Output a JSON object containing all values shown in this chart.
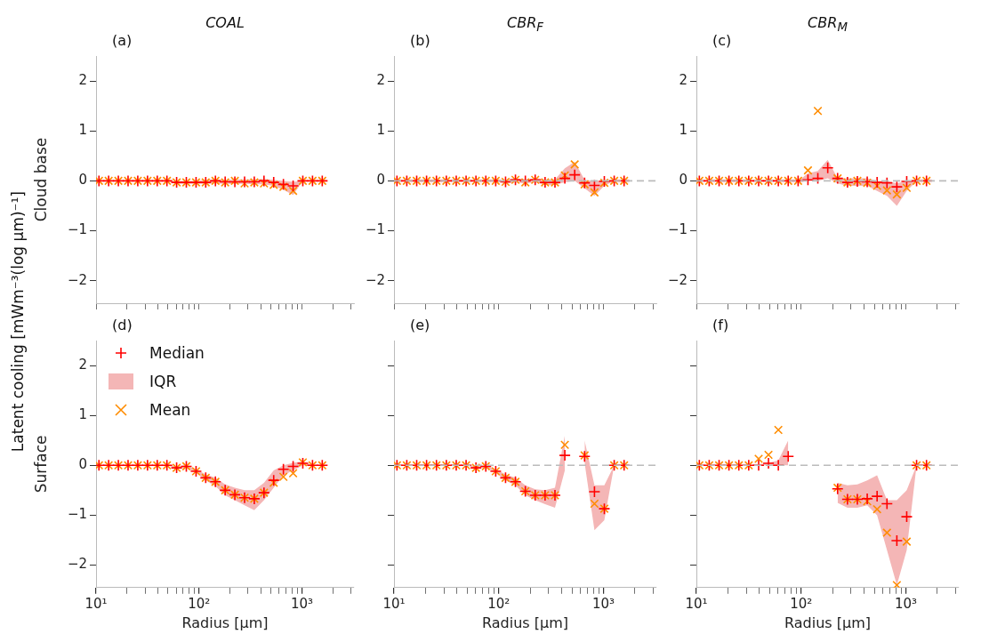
{
  "chart_data": [
    {
      "type": "scatter",
      "title": "COAL",
      "ylabel": "Cloud base",
      "annotations": [
        "(a)",
        "Latent cooling [mWm⁻³(log μm)⁻¹]"
      ],
      "log": "x",
      "xlim": [
        10,
        3200
      ],
      "ylim": [
        -2.45,
        2.5
      ],
      "tick_labels": "y",
      "xticks": [
        {
          "value": 10,
          "label": null
        },
        {
          "value": 20,
          "label": null
        },
        {
          "value": 30,
          "label": null
        },
        {
          "value": 40,
          "label": null
        },
        {
          "value": 50,
          "label": null
        },
        {
          "value": 60,
          "label": null
        },
        {
          "value": 70,
          "label": null
        },
        {
          "value": 80,
          "label": null
        },
        {
          "value": 90,
          "label": null
        },
        {
          "value": 100,
          "label": null
        },
        {
          "value": 200,
          "label": null
        },
        {
          "value": 300,
          "label": null
        },
        {
          "value": 400,
          "label": null
        },
        {
          "value": 500,
          "label": null
        },
        {
          "value": 600,
          "label": null
        },
        {
          "value": 700,
          "label": null
        },
        {
          "value": 800,
          "label": null
        },
        {
          "value": 900,
          "label": null
        },
        {
          "value": 1000,
          "label": null
        },
        {
          "value": 2000,
          "label": null
        },
        {
          "value": 3000,
          "label": null
        }
      ],
      "yticks": [
        {
          "value": -2,
          "label": "−2"
        },
        {
          "value": -1,
          "label": "−1"
        },
        0,
        1,
        2
      ],
      "x": [
        10.67,
        13.25,
        16.47,
        20.46,
        25.42,
        31.6,
        39.3,
        48.8,
        60.6,
        75.3,
        93.6,
        116.2,
        144.4,
        179.5,
        222.9,
        277,
        344.3,
        427.7,
        531.4,
        660.3,
        820.4,
        1019,
        1266,
        1574
      ],
      "series": [
        {
          "type": "scatter",
          "marker": "plus",
          "color": "#ff0000",
          "values": [
            0,
            0,
            0,
            0,
            0,
            0,
            0,
            0,
            -0.03,
            -0.03,
            -0.03,
            -0.03,
            0,
            -0.02,
            -0.02,
            -0.02,
            -0.02,
            0,
            -0.03,
            -0.07,
            -0.1,
            0,
            0,
            0
          ]
        },
        {
          "type": "area",
          "color": "#f4b6b6",
          "values": [
            null,
            null,
            null,
            null,
            null,
            null,
            null,
            null,
            null,
            null,
            null,
            null,
            null,
            null,
            null,
            null,
            null,
            null,
            null,
            null,
            null,
            null,
            null,
            null
          ],
          "lower": [
            0,
            0,
            0,
            0,
            0,
            0,
            0,
            0,
            -0.06,
            -0.06,
            -0.06,
            -0.06,
            -0.05,
            -0.06,
            -0.06,
            -0.06,
            -0.07,
            -0.07,
            -0.1,
            -0.18,
            -0.28,
            0,
            0,
            0
          ],
          "upper": [
            0,
            0,
            0,
            0,
            0,
            0,
            0,
            0,
            0,
            0,
            0,
            0.02,
            0.03,
            0.02,
            0.03,
            0.03,
            0.03,
            0.04,
            0.02,
            0,
            -0.02,
            0,
            0,
            0
          ]
        },
        {
          "type": "scatter",
          "marker": "cross",
          "color": "#ff8c00",
          "values": [
            0,
            0,
            0,
            0,
            0,
            0,
            0,
            0,
            -0.03,
            -0.03,
            -0.03,
            -0.03,
            0,
            -0.03,
            0,
            -0.05,
            -0.03,
            -0.05,
            -0.08,
            -0.12,
            -0.2,
            0,
            0,
            0
          ]
        }
      ]
    },
    {
      "type": "scatter",
      "title": "CBR$_{F}$",
      "annotations": [
        "(b)"
      ],
      "log": "x",
      "xlim": [
        10,
        3200
      ],
      "ylim": [
        -2.45,
        2.5
      ],
      "tick_labels": "y",
      "xticks": [
        {
          "value": 10,
          "label": null
        },
        {
          "value": 20,
          "label": null
        },
        {
          "value": 30,
          "label": null
        },
        {
          "value": 40,
          "label": null
        },
        {
          "value": 50,
          "label": null
        },
        {
          "value": 60,
          "label": null
        },
        {
          "value": 70,
          "label": null
        },
        {
          "value": 80,
          "label": null
        },
        {
          "value": 90,
          "label": null
        },
        {
          "value": 100,
          "label": null
        },
        {
          "value": 200,
          "label": null
        },
        {
          "value": 300,
          "label": null
        },
        {
          "value": 400,
          "label": null
        },
        {
          "value": 500,
          "label": null
        },
        {
          "value": 600,
          "label": null
        },
        {
          "value": 700,
          "label": null
        },
        {
          "value": 800,
          "label": null
        },
        {
          "value": 900,
          "label": null
        },
        {
          "value": 1000,
          "label": null
        },
        {
          "value": 2000,
          "label": null
        },
        {
          "value": 3000,
          "label": null
        }
      ],
      "yticks": [
        {
          "value": -2,
          "label": "−2"
        },
        {
          "value": -1,
          "label": "−1"
        },
        0,
        1,
        2
      ],
      "ref_lines": [
        {
          "axis": "y",
          "value": 0,
          "color": "#bbbbbb",
          "line_style": "dashed"
        }
      ],
      "x": [
        10.67,
        13.25,
        16.47,
        20.46,
        25.42,
        31.6,
        39.3,
        48.8,
        60.6,
        75.3,
        93.6,
        116.2,
        144.4,
        179.5,
        222.9,
        277,
        344.3,
        427.7,
        531.4,
        660.3,
        820.4,
        1019,
        1266,
        1574
      ],
      "series": [
        {
          "type": "scatter",
          "marker": "plus",
          "color": "#ff0000",
          "values": [
            0,
            0,
            0,
            0,
            0,
            0,
            0,
            0,
            0,
            0,
            0,
            -0.02,
            0.02,
            0,
            0.02,
            -0.03,
            -0.03,
            0.05,
            0.12,
            -0.04,
            -0.09,
            -0.01,
            0,
            0
          ]
        },
        {
          "type": "area",
          "color": "#f4b6b6",
          "values": [
            null,
            null,
            null,
            null,
            null,
            null,
            null,
            null,
            null,
            null,
            null,
            null,
            null,
            null,
            null,
            null,
            null,
            null,
            null,
            null,
            null,
            null,
            null,
            null
          ],
          "lower": [
            0,
            0,
            0,
            0,
            0,
            0,
            0,
            0,
            0,
            0,
            0,
            -0.05,
            -0.03,
            -0.05,
            -0.03,
            -0.08,
            -0.08,
            -0.03,
            0,
            -0.15,
            -0.3,
            -0.1,
            0,
            0
          ],
          "upper": [
            0,
            0,
            0,
            0,
            0,
            0,
            0,
            0,
            0,
            0,
            0,
            0.02,
            0.05,
            0.03,
            0.05,
            0.03,
            0.03,
            0.25,
            0.38,
            0.02,
            0,
            0.02,
            0,
            0
          ]
        },
        {
          "type": "scatter",
          "marker": "cross",
          "color": "#ff8c00",
          "values": [
            0,
            0,
            0,
            0,
            0,
            0,
            0,
            0,
            0,
            0,
            0,
            -0.02,
            0.02,
            -0.03,
            0.02,
            -0.03,
            -0.03,
            0.11,
            0.33,
            -0.07,
            -0.23,
            -0.04,
            0,
            0
          ]
        }
      ]
    },
    {
      "type": "scatter",
      "title": "CBR$_{M}$",
      "annotations": [
        "(c)"
      ],
      "log": "x",
      "xlim": [
        10,
        3200
      ],
      "ylim": [
        -2.45,
        2.5
      ],
      "tick_labels": "y",
      "xticks": [
        {
          "value": 10,
          "label": null
        },
        {
          "value": 20,
          "label": null
        },
        {
          "value": 30,
          "label": null
        },
        {
          "value": 40,
          "label": null
        },
        {
          "value": 50,
          "label": null
        },
        {
          "value": 60,
          "label": null
        },
        {
          "value": 70,
          "label": null
        },
        {
          "value": 80,
          "label": null
        },
        {
          "value": 90,
          "label": null
        },
        {
          "value": 100,
          "label": null
        },
        {
          "value": 200,
          "label": null
        },
        {
          "value": 300,
          "label": null
        },
        {
          "value": 400,
          "label": null
        },
        {
          "value": 500,
          "label": null
        },
        {
          "value": 600,
          "label": null
        },
        {
          "value": 700,
          "label": null
        },
        {
          "value": 800,
          "label": null
        },
        {
          "value": 900,
          "label": null
        },
        {
          "value": 1000,
          "label": null
        },
        {
          "value": 2000,
          "label": null
        },
        {
          "value": 3000,
          "label": null
        }
      ],
      "yticks": [
        {
          "value": -2,
          "label": "−2"
        },
        {
          "value": -1,
          "label": "−1"
        },
        0,
        1,
        2
      ],
      "ref_lines": [
        {
          "axis": "y",
          "value": 0,
          "color": "#bbbbbb",
          "line_style": "dashed"
        }
      ],
      "x": [
        10.67,
        13.25,
        16.47,
        20.46,
        25.42,
        31.6,
        39.3,
        48.8,
        60.6,
        75.3,
        93.6,
        116.2,
        144.4,
        179.5,
        222.9,
        277,
        344.3,
        427.7,
        531.4,
        660.3,
        820.4,
        1019,
        1266,
        1574
      ],
      "series": [
        {
          "type": "scatter",
          "marker": "plus",
          "color": "#ff0000",
          "values": [
            0,
            0,
            0,
            0,
            0,
            0,
            0,
            0,
            0,
            0,
            0,
            0.02,
            0.05,
            0.26,
            0.05,
            -0.03,
            -0.01,
            -0.02,
            -0.03,
            -0.04,
            -0.12,
            -0.01,
            0,
            0
          ]
        },
        {
          "type": "area",
          "color": "#f4b6b6",
          "values": [
            null,
            null,
            null,
            null,
            null,
            null,
            null,
            null,
            null,
            null,
            null,
            null,
            null,
            null,
            null,
            null,
            null,
            null,
            null,
            null,
            null,
            null,
            null,
            null
          ],
          "lower": [
            0,
            0,
            0,
            0,
            0,
            0,
            0,
            0,
            0,
            0,
            0,
            0,
            0,
            0.05,
            -0.05,
            -0.1,
            -0.1,
            -0.1,
            -0.2,
            -0.3,
            -0.5,
            -0.2,
            0,
            0
          ],
          "upper": [
            0,
            0,
            0,
            0,
            0,
            0,
            0,
            0,
            0,
            0,
            0,
            0.15,
            0.2,
            0.42,
            0.05,
            0.05,
            0.05,
            0.05,
            0,
            0,
            -0.05,
            0,
            0,
            0
          ]
        },
        {
          "type": "scatter",
          "marker": "cross",
          "color": "#ff8c00",
          "values": [
            0,
            0,
            0,
            0,
            0,
            0,
            0,
            0,
            0,
            0,
            0,
            0.21,
            1.4,
            null,
            0.05,
            -0.03,
            0,
            -0.04,
            -0.1,
            -0.19,
            -0.27,
            -0.14,
            0,
            0
          ]
        }
      ]
    },
    {
      "type": "scatter",
      "xlabel": "Radius [μm]",
      "ylabel": "Surface",
      "annotations": [
        "(d)"
      ],
      "log": "x",
      "xlim": [
        10,
        3200
      ],
      "ylim": [
        -2.45,
        2.5
      ],
      "legend": "top left",
      "xticks": [
        {
          "value": 10,
          "label": "10¹"
        },
        {
          "value": 20,
          "label": null
        },
        {
          "value": 30,
          "label": null
        },
        {
          "value": 40,
          "label": null
        },
        {
          "value": 50,
          "label": null
        },
        {
          "value": 60,
          "label": null
        },
        {
          "value": 70,
          "label": null
        },
        {
          "value": 80,
          "label": null
        },
        {
          "value": 90,
          "label": null
        },
        {
          "value": 100,
          "label": "10²"
        },
        {
          "value": 200,
          "label": null
        },
        {
          "value": 300,
          "label": null
        },
        {
          "value": 400,
          "label": null
        },
        {
          "value": 500,
          "label": null
        },
        {
          "value": 600,
          "label": null
        },
        {
          "value": 700,
          "label": null
        },
        {
          "value": 800,
          "label": null
        },
        {
          "value": 900,
          "label": null
        },
        {
          "value": 1000,
          "label": "10³"
        },
        {
          "value": 2000,
          "label": null
        },
        {
          "value": 3000,
          "label": null
        }
      ],
      "yticks": [
        {
          "value": -2,
          "label": "−2"
        },
        {
          "value": -1,
          "label": "−1"
        },
        0,
        1,
        2
      ],
      "x": [
        10.67,
        13.25,
        16.47,
        20.46,
        25.42,
        31.6,
        39.3,
        48.8,
        60.6,
        75.3,
        93.6,
        116.2,
        144.4,
        179.5,
        222.9,
        277,
        344.3,
        427.7,
        531.4,
        660.3,
        820.4,
        1019,
        1266,
        1574
      ],
      "series": [
        {
          "name": "Median",
          "type": "scatter",
          "marker": "plus",
          "color": "#ff0000",
          "values": [
            0,
            0,
            0,
            0,
            0,
            0,
            0,
            0,
            -0.05,
            -0.02,
            -0.12,
            -0.25,
            -0.33,
            -0.5,
            -0.59,
            -0.65,
            -0.67,
            -0.55,
            -0.3,
            -0.08,
            -0.02,
            0.04,
            0,
            0
          ]
        },
        {
          "name": "IQR",
          "type": "area",
          "color": "#f4b6b6",
          "values": [
            null,
            null,
            null,
            null,
            null,
            null,
            null,
            null,
            null,
            null,
            null,
            null,
            null,
            null,
            null,
            null,
            null,
            null,
            null,
            null,
            null,
            null,
            null,
            null
          ],
          "lower": [
            0,
            0,
            0,
            0,
            0,
            0,
            0,
            0,
            -0.06,
            -0.05,
            -0.15,
            -0.3,
            -0.42,
            -0.6,
            -0.7,
            -0.8,
            -0.9,
            -0.7,
            -0.45,
            -0.2,
            -0.1,
            0,
            0,
            0
          ],
          "upper": [
            0,
            0,
            0,
            0,
            0,
            0,
            0,
            0,
            -0.02,
            0,
            -0.08,
            -0.18,
            -0.25,
            -0.38,
            -0.45,
            -0.5,
            -0.5,
            -0.35,
            -0.1,
            0,
            0.05,
            0.08,
            0,
            0
          ]
        },
        {
          "name": "Mean",
          "type": "scatter",
          "marker": "cross",
          "color": "#ff8c00",
          "values": [
            0,
            0,
            0,
            0,
            0,
            0,
            0,
            0,
            -0.05,
            -0.02,
            -0.12,
            -0.25,
            -0.33,
            -0.5,
            -0.59,
            -0.65,
            -0.67,
            -0.55,
            -0.35,
            -0.23,
            -0.16,
            0.06,
            0,
            0
          ]
        }
      ]
    },
    {
      "type": "scatter",
      "xlabel": "Radius [μm]",
      "annotations": [
        "(e)"
      ],
      "log": "x",
      "xlim": [
        10,
        3200
      ],
      "ylim": [
        -2.45,
        2.5
      ],
      "tick_labels": "x",
      "xticks": [
        {
          "value": 10,
          "label": "10¹"
        },
        {
          "value": 20,
          "label": null
        },
        {
          "value": 30,
          "label": null
        },
        {
          "value": 40,
          "label": null
        },
        {
          "value": 50,
          "label": null
        },
        {
          "value": 60,
          "label": null
        },
        {
          "value": 70,
          "label": null
        },
        {
          "value": 80,
          "label": null
        },
        {
          "value": 90,
          "label": null
        },
        {
          "value": 100,
          "label": "10²"
        },
        {
          "value": 200,
          "label": null
        },
        {
          "value": 300,
          "label": null
        },
        {
          "value": 400,
          "label": null
        },
        {
          "value": 500,
          "label": null
        },
        {
          "value": 600,
          "label": null
        },
        {
          "value": 700,
          "label": null
        },
        {
          "value": 800,
          "label": null
        },
        {
          "value": 900,
          "label": null
        },
        {
          "value": 1000,
          "label": "10³"
        },
        {
          "value": 2000,
          "label": null
        },
        {
          "value": 3000,
          "label": null
        }
      ],
      "yticks": [
        {
          "value": -2,
          "label": null
        },
        {
          "value": -1,
          "label": null
        },
        {
          "value": 0,
          "label": null
        },
        {
          "value": 1,
          "label": null
        },
        {
          "value": 2,
          "label": null
        }
      ],
      "ref_lines": [
        {
          "axis": "y",
          "value": 0,
          "color": "#bbbbbb",
          "line_style": "dashed"
        }
      ],
      "x": [
        10.67,
        13.25,
        16.47,
        20.46,
        25.42,
        31.6,
        39.3,
        48.8,
        60.6,
        75.3,
        93.6,
        116.2,
        144.4,
        179.5,
        222.9,
        277,
        344.3,
        427.7,
        531.4,
        660.3,
        820.4,
        1019,
        1266,
        1574
      ],
      "series": [
        {
          "type": "scatter",
          "marker": "plus",
          "color": "#ff0000",
          "values": [
            0,
            0,
            0,
            0,
            0,
            0,
            0,
            0,
            -0.05,
            -0.02,
            -0.12,
            -0.25,
            -0.33,
            -0.52,
            -0.6,
            -0.6,
            -0.6,
            0.2,
            null,
            0.18,
            -0.53,
            -0.87,
            0,
            0
          ]
        },
        {
          "type": "area",
          "color": "#f4b6b6",
          "values": [
            null,
            null,
            null,
            null,
            null,
            null,
            null,
            null,
            null,
            null,
            null,
            null,
            null,
            null,
            null,
            null,
            null,
            null,
            null,
            null,
            null,
            null,
            null,
            null
          ],
          "lower": [
            0,
            0,
            0,
            0,
            0,
            0,
            0,
            0,
            -0.06,
            -0.05,
            -0.15,
            -0.3,
            -0.4,
            -0.6,
            -0.7,
            -0.78,
            -0.85,
            -0.1,
            null,
            0.05,
            -1.3,
            -1.1,
            0,
            0
          ],
          "upper": [
            0,
            0,
            0,
            0,
            0,
            0,
            0,
            0,
            -0.02,
            0,
            -0.08,
            -0.18,
            -0.25,
            -0.4,
            -0.48,
            -0.5,
            -0.45,
            0.6,
            null,
            0.5,
            -0.4,
            -0.4,
            0,
            0
          ]
        },
        {
          "type": "scatter",
          "marker": "cross",
          "color": "#ff8c00",
          "values": [
            0,
            0,
            0,
            0,
            0,
            0,
            0,
            0,
            -0.05,
            -0.02,
            -0.12,
            -0.25,
            -0.33,
            -0.52,
            -0.6,
            -0.6,
            -0.6,
            0.41,
            null,
            0.2,
            -0.77,
            -0.87,
            0,
            0
          ]
        }
      ]
    },
    {
      "type": "scatter",
      "xlabel": "Radius [μm]",
      "annotations": [
        "(f)"
      ],
      "log": "x",
      "xlim": [
        10,
        3200
      ],
      "ylim": [
        -2.45,
        2.5
      ],
      "tick_labels": "x",
      "xticks": [
        {
          "value": 10,
          "label": "10¹"
        },
        {
          "value": 20,
          "label": null
        },
        {
          "value": 30,
          "label": null
        },
        {
          "value": 40,
          "label": null
        },
        {
          "value": 50,
          "label": null
        },
        {
          "value": 60,
          "label": null
        },
        {
          "value": 70,
          "label": null
        },
        {
          "value": 80,
          "label": null
        },
        {
          "value": 90,
          "label": null
        },
        {
          "value": 100,
          "label": "10²"
        },
        {
          "value": 200,
          "label": null
        },
        {
          "value": 300,
          "label": null
        },
        {
          "value": 400,
          "label": null
        },
        {
          "value": 500,
          "label": null
        },
        {
          "value": 600,
          "label": null
        },
        {
          "value": 700,
          "label": null
        },
        {
          "value": 800,
          "label": null
        },
        {
          "value": 900,
          "label": null
        },
        {
          "value": 1000,
          "label": "10³"
        },
        {
          "value": 2000,
          "label": null
        },
        {
          "value": 3000,
          "label": null
        }
      ],
      "yticks": [
        {
          "value": -2,
          "label": null
        },
        {
          "value": -1,
          "label": null
        },
        {
          "value": 0,
          "label": null
        },
        {
          "value": 1,
          "label": null
        },
        {
          "value": 2,
          "label": null
        }
      ],
      "ref_lines": [
        {
          "axis": "y",
          "value": 0,
          "color": "#bbbbbb",
          "line_style": "dashed"
        }
      ],
      "x": [
        10.67,
        13.25,
        16.47,
        20.46,
        25.42,
        31.6,
        39.3,
        48.8,
        60.6,
        75.3,
        93.6,
        116.2,
        144.4,
        179.5,
        222.9,
        277,
        344.3,
        427.7,
        531.4,
        660.3,
        820.4,
        1019,
        1266,
        1574
      ],
      "series": [
        {
          "type": "scatter",
          "marker": "plus",
          "color": "#ff0000",
          "values": [
            0,
            0,
            0,
            0,
            0,
            0,
            0,
            0.04,
            0,
            0.18,
            null,
            null,
            null,
            null,
            -0.47,
            -0.68,
            -0.68,
            -0.67,
            -0.62,
            -0.77,
            -1.51,
            -1.03,
            0,
            0
          ]
        },
        {
          "type": "area",
          "color": "#f4b6b6",
          "values": [
            null,
            null,
            null,
            null,
            null,
            null,
            null,
            null,
            null,
            null,
            null,
            null,
            null,
            null,
            null,
            null,
            null,
            null,
            null,
            null,
            null,
            null,
            null,
            null
          ],
          "lower": [
            0,
            0,
            0,
            0,
            0,
            0,
            0,
            0,
            0,
            0,
            null,
            null,
            null,
            null,
            -0.75,
            -0.85,
            -0.85,
            -0.8,
            -1.0,
            -1.7,
            -2.4,
            -1.7,
            0,
            0
          ],
          "upper": [
            0,
            0,
            0,
            0,
            0,
            0,
            0.02,
            0.05,
            0.1,
            0.5,
            null,
            null,
            null,
            null,
            -0.35,
            -0.4,
            -0.38,
            -0.3,
            -0.2,
            -0.7,
            -0.7,
            -0.5,
            0,
            0
          ]
        },
        {
          "type": "scatter",
          "marker": "cross",
          "color": "#ff8c00",
          "values": [
            0,
            0,
            0,
            0,
            0,
            0,
            0.13,
            0.21,
            0.71,
            null,
            null,
            null,
            null,
            null,
            -0.45,
            -0.68,
            -0.68,
            -0.72,
            -0.88,
            -1.35,
            -2.4,
            -1.53,
            0,
            0
          ]
        }
      ]
    }
  ]
}
